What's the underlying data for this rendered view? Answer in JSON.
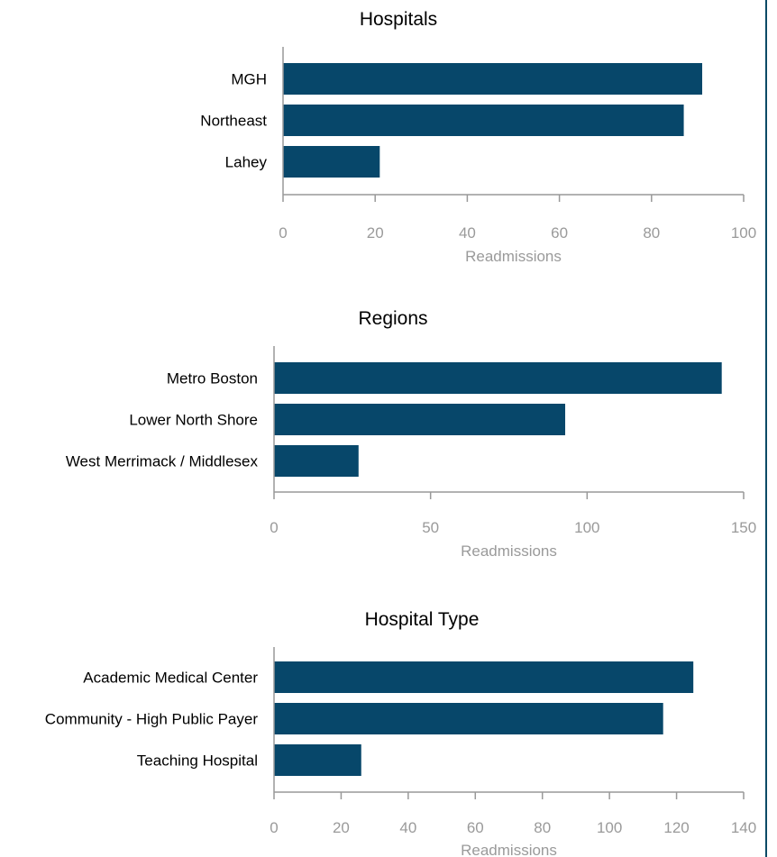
{
  "chart_data": [
    {
      "type": "bar",
      "orientation": "horizontal",
      "title": "Hospitals",
      "categories": [
        "MGH",
        "Northeast",
        "Lahey"
      ],
      "values": [
        91,
        87,
        21
      ],
      "xlabel": "Readmissions",
      "xlim": [
        0,
        100
      ],
      "ticks": [
        0,
        20,
        40,
        60,
        80,
        100
      ],
      "tick_labels": [
        "0",
        "20",
        "40",
        "60",
        "80",
        "100"
      ],
      "color": "#07476a",
      "grid": false
    },
    {
      "type": "bar",
      "orientation": "horizontal",
      "title": "Regions",
      "categories": [
        "Metro Boston",
        "Lower North Shore",
        "West Merrimack / Middlesex"
      ],
      "values": [
        143,
        93,
        27
      ],
      "xlabel": "Readmissions",
      "xlim": [
        0,
        150
      ],
      "ticks": [
        0,
        50,
        100,
        150
      ],
      "tick_labels": [
        "0",
        "50",
        "100",
        "150"
      ],
      "color": "#07476a",
      "grid": false
    },
    {
      "type": "bar",
      "orientation": "horizontal",
      "title": "Hospital Type",
      "categories": [
        "Academic Medical Center",
        "Community - High Public Payer",
        "Teaching Hospital"
      ],
      "values": [
        125,
        116,
        26
      ],
      "xlabel": "Readmissions",
      "xlim": [
        0,
        140
      ],
      "ticks": [
        0,
        20,
        40,
        60,
        80,
        100,
        120,
        140
      ],
      "tick_labels": [
        "0",
        "20",
        "40",
        "60",
        "80",
        "100",
        "120",
        "140"
      ],
      "color": "#07476a",
      "grid": false
    }
  ],
  "axis_color": "#999999"
}
